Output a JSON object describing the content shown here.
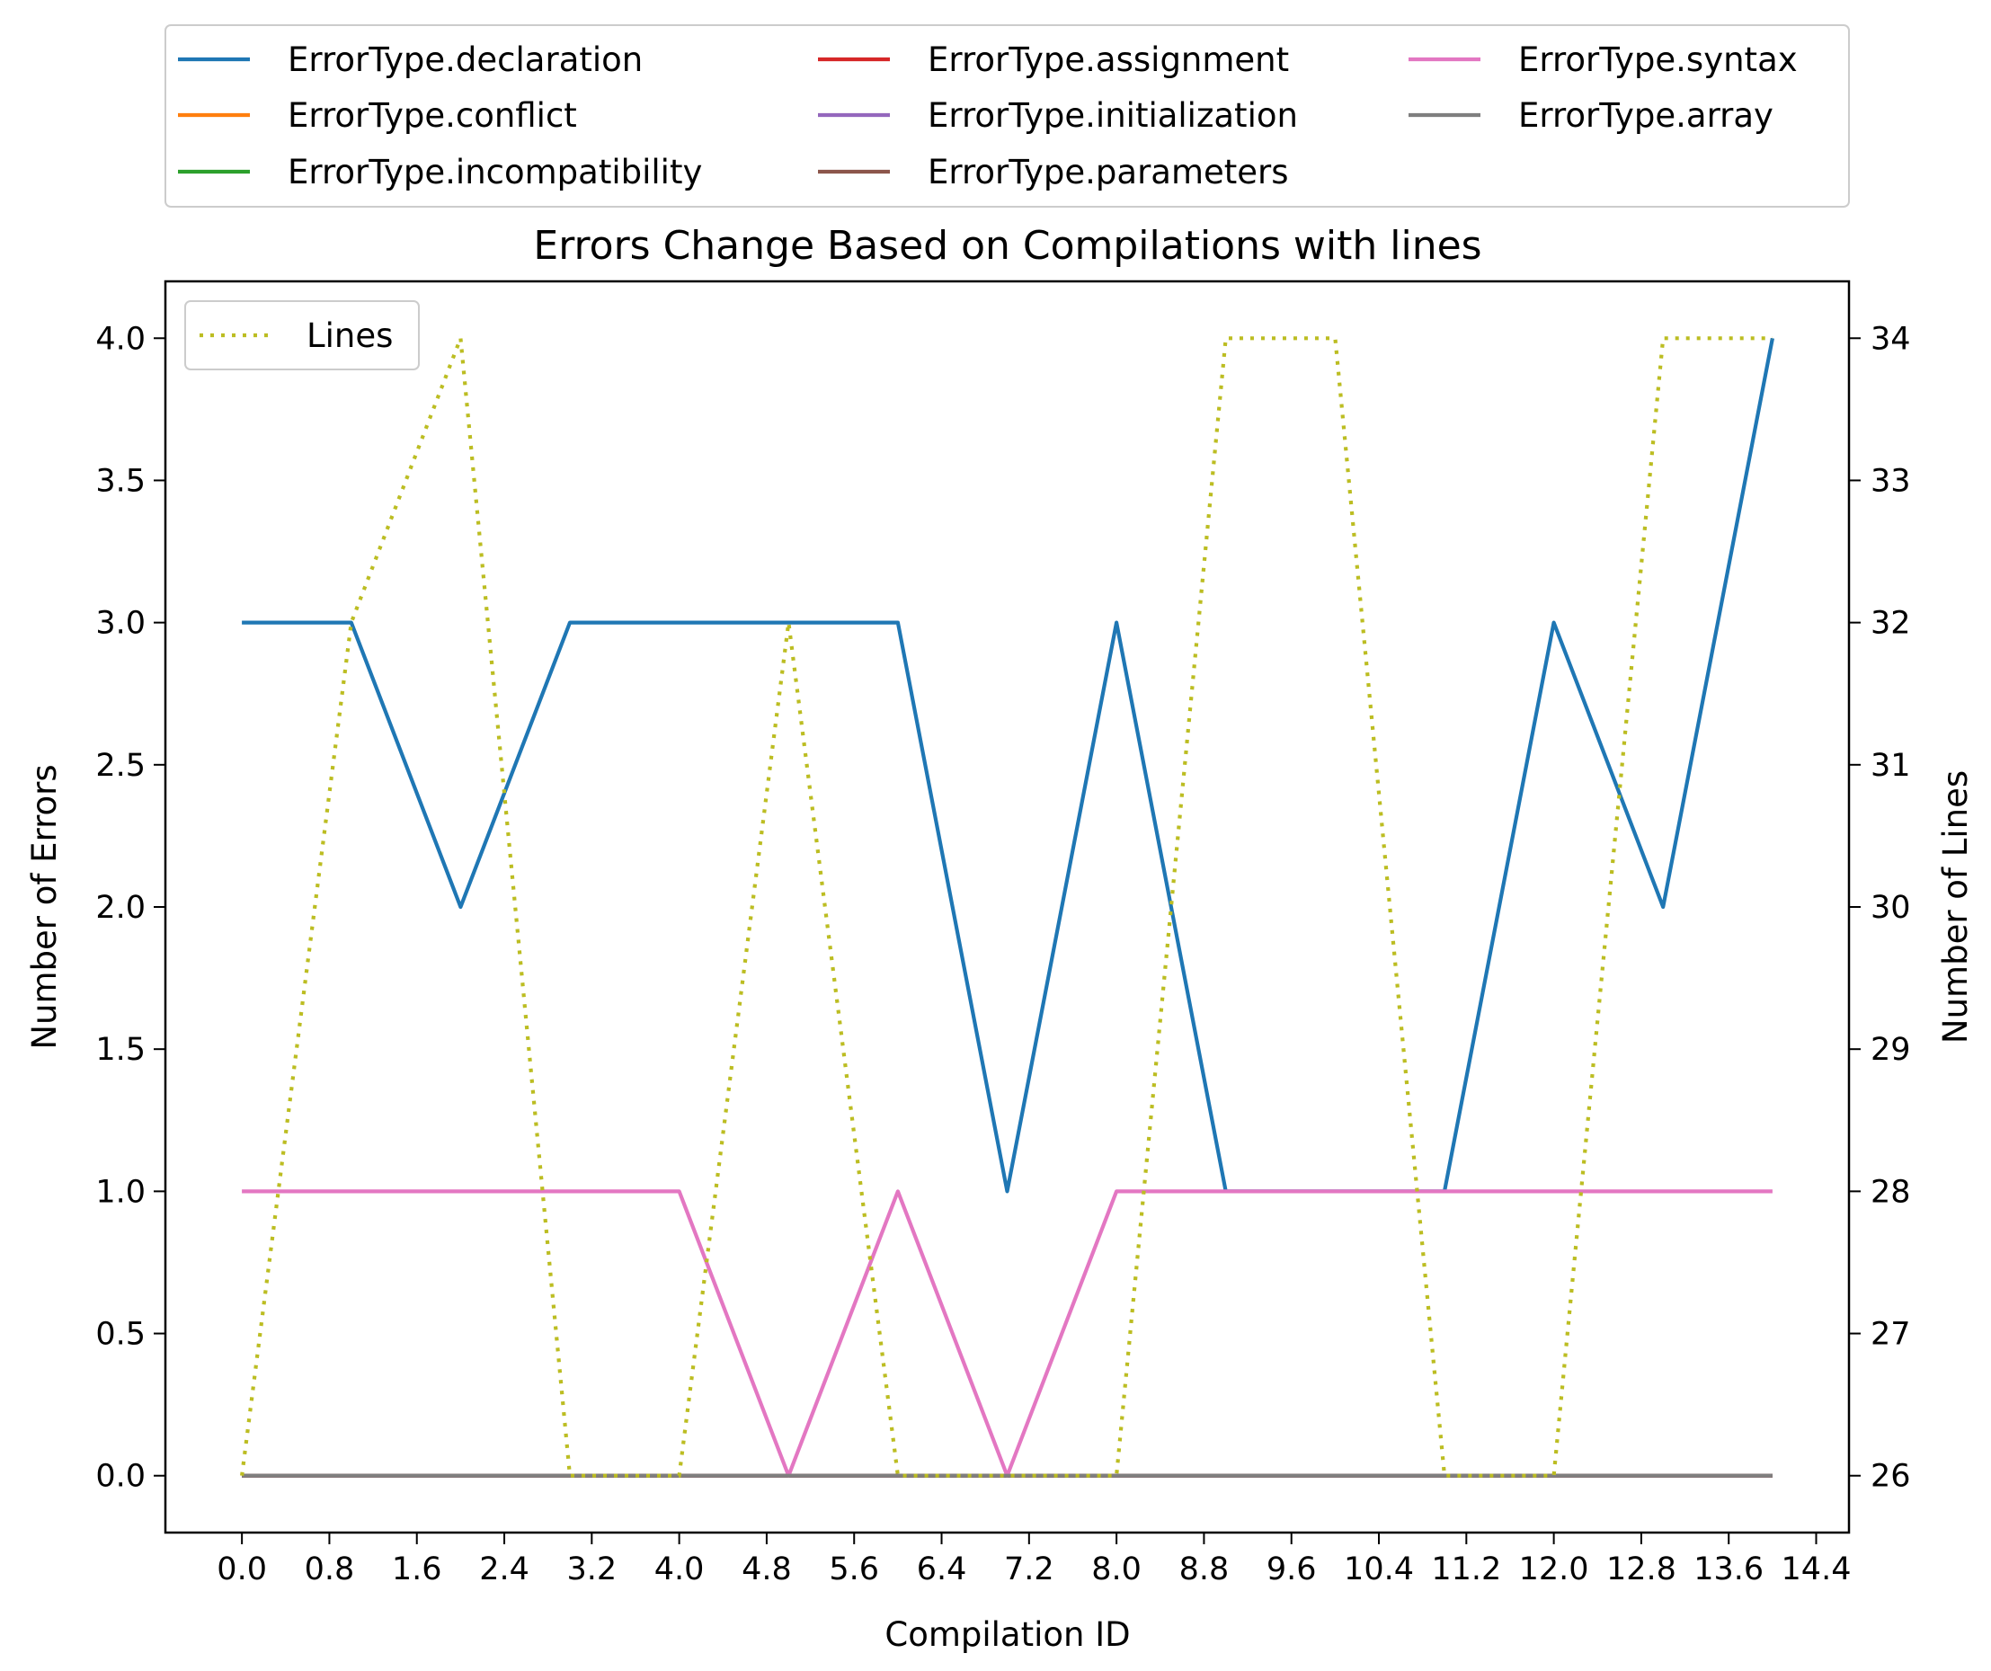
{
  "chart_data": {
    "type": "line",
    "title": "Errors Change Based on Compilations with lines",
    "xlabel": "Compilation ID",
    "ylabel": "Number of Errors",
    "y2label": "Number of Lines",
    "x": [
      0,
      1,
      2,
      3,
      4,
      5,
      6,
      7,
      8,
      9,
      10,
      11,
      12,
      13,
      14
    ],
    "xlim": [
      -0.7,
      14.7
    ],
    "ylim": [
      -0.2,
      4.2
    ],
    "y2lim": [
      25.6,
      34.4
    ],
    "xticks": [
      "0.0",
      "0.8",
      "1.6",
      "2.4",
      "3.2",
      "4.0",
      "4.8",
      "5.6",
      "6.4",
      "7.2",
      "8.0",
      "8.8",
      "9.6",
      "10.4",
      "11.2",
      "12.0",
      "12.8",
      "13.6",
      "14.4"
    ],
    "yticks": [
      "0.0",
      "0.5",
      "1.0",
      "1.5",
      "2.0",
      "2.5",
      "3.0",
      "3.5",
      "4.0"
    ],
    "y2ticks": [
      "26",
      "27",
      "28",
      "29",
      "30",
      "31",
      "32",
      "33",
      "34"
    ],
    "grid": false,
    "legend_placement": "above-plot",
    "series": [
      {
        "name": "ErrorType.declaration",
        "color": "#1f77b4",
        "values": [
          3,
          3,
          2,
          3,
          3,
          3,
          3,
          1,
          3,
          1,
          1,
          1,
          3,
          2,
          4
        ]
      },
      {
        "name": "ErrorType.conflict",
        "color": "#ff7f0e",
        "values": [
          0,
          0,
          0,
          0,
          0,
          0,
          0,
          0,
          0,
          0,
          0,
          0,
          0,
          0,
          0
        ]
      },
      {
        "name": "ErrorType.incompatibility",
        "color": "#2ca02c",
        "values": [
          0,
          0,
          0,
          0,
          0,
          0,
          0,
          0,
          0,
          0,
          0,
          0,
          0,
          0,
          0
        ]
      },
      {
        "name": "ErrorType.assignment",
        "color": "#d62728",
        "values": [
          0,
          0,
          0,
          0,
          0,
          0,
          0,
          0,
          0,
          0,
          0,
          0,
          0,
          0,
          0
        ]
      },
      {
        "name": "ErrorType.initialization",
        "color": "#9467bd",
        "values": [
          0,
          0,
          0,
          0,
          0,
          0,
          0,
          0,
          0,
          0,
          0,
          0,
          0,
          0,
          0
        ]
      },
      {
        "name": "ErrorType.parameters",
        "color": "#8c564b",
        "values": [
          0,
          0,
          0,
          0,
          0,
          0,
          0,
          0,
          0,
          0,
          0,
          0,
          0,
          0,
          0
        ]
      },
      {
        "name": "ErrorType.syntax",
        "color": "#e377c2",
        "values": [
          1,
          1,
          1,
          1,
          1,
          0,
          1,
          0,
          1,
          1,
          1,
          1,
          1,
          1,
          1
        ]
      },
      {
        "name": "ErrorType.array",
        "color": "#7f7f7f",
        "values": [
          0,
          0,
          0,
          0,
          0,
          0,
          0,
          0,
          0,
          0,
          0,
          0,
          0,
          0,
          0
        ]
      }
    ],
    "secondary_series": [
      {
        "name": "Lines",
        "color": "#bcbd22",
        "style": "dotted",
        "values": [
          26,
          32,
          34,
          26,
          26,
          32,
          26,
          26,
          26,
          34,
          34,
          26,
          26,
          34,
          34
        ]
      }
    ]
  }
}
